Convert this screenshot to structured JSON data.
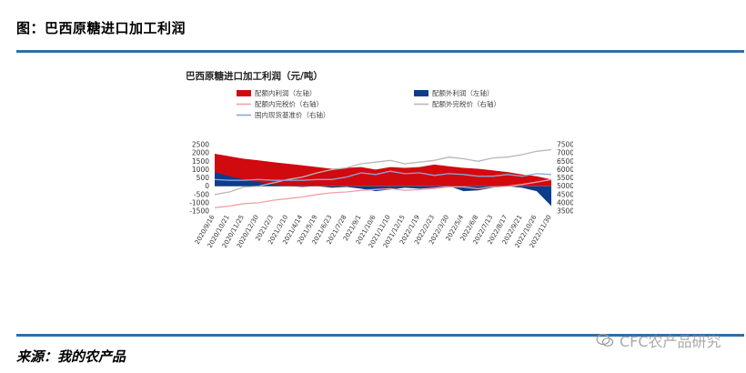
{
  "figure_title": "图：巴西原糖进口加工利润",
  "source_text": "来源：我的农产品",
  "watermark_text": "CFC农产品研究",
  "colors": {
    "rule": "#2e6ea8",
    "in_quota_profit": "#d10a10",
    "out_quota_profit": "#0b3d8c",
    "in_quota_price": "#f2a0a8",
    "out_quota_price": "#b8b8b8",
    "spot_price": "#8aa6d8"
  },
  "chart_data": {
    "type": "area",
    "title": "巴西原糖进口加工利润（元/吨）",
    "legend_position": "top",
    "y_left": {
      "ticks": [
        -1500,
        -1000,
        -500,
        0,
        500,
        1000,
        1500,
        2000,
        2500
      ],
      "ylim": [
        -1500,
        2500
      ]
    },
    "y_right": {
      "ticks": [
        3500,
        4000,
        4500,
        5000,
        5500,
        6000,
        6500,
        7000,
        7500
      ],
      "ylim": [
        3500,
        7500
      ]
    },
    "x_labels": [
      "2020/9/16",
      "2020/10/21",
      "2020/11/25",
      "2020/12/30",
      "2021/2/3",
      "2021/3/10",
      "2021/4/14",
      "2021/5/19",
      "2021/6/23",
      "2021/7/28",
      "2021/9/1",
      "2021/10/6",
      "2021/11/10",
      "2021/12/15",
      "2022/1/19",
      "2022/2/23",
      "2022/3/30",
      "2022/5/4",
      "2022/6/8",
      "2022/7/13",
      "2022/8/17",
      "2022/9/21",
      "2022/10/26",
      "2022/11/30"
    ],
    "series": [
      {
        "name": "配额内利润（左轴）",
        "type": "area",
        "axis": "left",
        "values": [
          1950,
          1800,
          1650,
          1550,
          1450,
          1350,
          1250,
          1150,
          1050,
          1100,
          1150,
          1000,
          1150,
          1100,
          1150,
          1300,
          1200,
          1100,
          1050,
          950,
          850,
          700,
          600,
          400
        ]
      },
      {
        "name": "配额外利润（左轴）",
        "type": "area",
        "axis": "left",
        "values": [
          850,
          600,
          400,
          250,
          100,
          0,
          -50,
          0,
          -100,
          -50,
          -150,
          -300,
          -200,
          -100,
          -150,
          -100,
          0,
          -300,
          -250,
          -100,
          0,
          -100,
          -300,
          -1200
        ]
      },
      {
        "name": "配额内完税价（右轴）",
        "type": "line",
        "axis": "right",
        "values": [
          3700,
          3800,
          3950,
          4000,
          4150,
          4250,
          4350,
          4500,
          4600,
          4650,
          4750,
          4800,
          4850,
          4750,
          4800,
          4850,
          4950,
          4950,
          4850,
          4950,
          5000,
          5100,
          5250,
          5400
        ]
      },
      {
        "name": "配额外完税价（右轴）",
        "type": "line",
        "axis": "right",
        "values": [
          4500,
          4650,
          4950,
          5000,
          5200,
          5400,
          5550,
          5800,
          6000,
          6100,
          6350,
          6450,
          6550,
          6350,
          6450,
          6550,
          6750,
          6650,
          6500,
          6700,
          6750,
          6900,
          7100,
          7200
        ]
      },
      {
        "name": "国内现货基准价（右轴）",
        "type": "line",
        "axis": "right",
        "values": [
          5400,
          5350,
          5350,
          5400,
          5350,
          5350,
          5350,
          5400,
          5400,
          5550,
          5800,
          5700,
          5900,
          5750,
          5800,
          5650,
          5750,
          5700,
          5600,
          5600,
          5700,
          5600,
          5750,
          5700
        ]
      }
    ]
  }
}
